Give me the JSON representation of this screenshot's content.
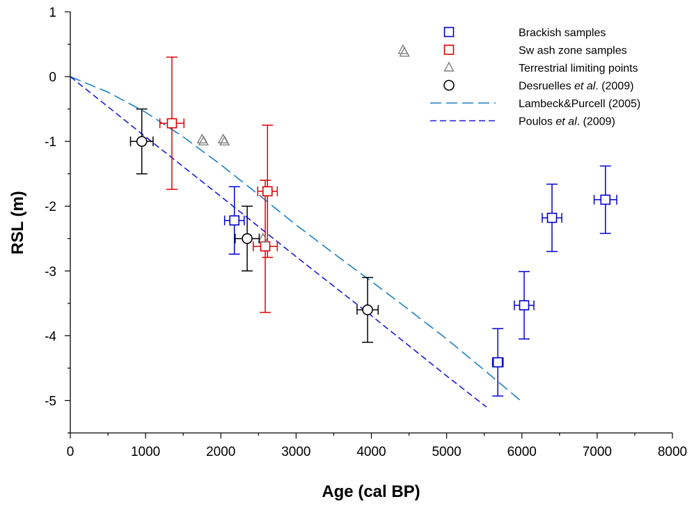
{
  "chart_data": {
    "type": "scatter",
    "xlabel": "Age (cal BP)",
    "ylabel": "RSL (m)",
    "xlim": [
      0,
      8000
    ],
    "ylim": [
      -5.5,
      1
    ],
    "xticks": [
      0,
      1000,
      2000,
      3000,
      4000,
      5000,
      6000,
      7000,
      8000
    ],
    "yticks": [
      1,
      0,
      -1,
      -2,
      -3,
      -4,
      -5
    ],
    "grid": false,
    "legend_position": "top-right",
    "colors": {
      "brackish": "#0000cc",
      "swash": "#dd0000",
      "terrestrial": "#808080",
      "desruelles": "#000000",
      "lambeck": "#1a7fc4",
      "poulos": "#1a1adc"
    },
    "series": [
      {
        "name": "Brackish samples",
        "marker": "square",
        "points": [
          {
            "x": 2180,
            "y": -2.22,
            "xerr": 130,
            "yerr_low": 0.52,
            "yerr_high": 0.52
          },
          {
            "x": 5680,
            "y": -4.41,
            "xerr": 70,
            "yerr_low": 0.52,
            "yerr_high": 0.52
          },
          {
            "x": 6030,
            "y": -3.53,
            "xerr": 130,
            "yerr_low": 0.52,
            "yerr_high": 0.52
          },
          {
            "x": 6400,
            "y": -2.18,
            "xerr": 130,
            "yerr_low": 0.52,
            "yerr_high": 0.52
          },
          {
            "x": 7110,
            "y": -1.9,
            "xerr": 150,
            "yerr_low": 0.52,
            "yerr_high": 0.52
          }
        ]
      },
      {
        "name": "Sw ash zone samples",
        "marker": "square",
        "points": [
          {
            "x": 1350,
            "y": -0.72,
            "xerr": 160,
            "yerr_low": 1.02,
            "yerr_high": 1.02
          },
          {
            "x": 2620,
            "y": -1.77,
            "xerr": 130,
            "yerr_low": 1.02,
            "yerr_high": 1.02
          },
          {
            "x": 2590,
            "y": -2.62,
            "xerr": 160,
            "yerr_low": 1.02,
            "yerr_high": 1.02
          }
        ]
      },
      {
        "name": "Terrestrial limiting points",
        "marker": "triangle",
        "points": [
          {
            "x": 1750,
            "y": -0.97
          },
          {
            "x": 1770,
            "y": -1.0
          },
          {
            "x": 2030,
            "y": -0.97
          },
          {
            "x": 2050,
            "y": -1.0
          },
          {
            "x": 2560,
            "y": -2.5
          },
          {
            "x": 4420,
            "y": 0.41
          },
          {
            "x": 4440,
            "y": 0.37
          }
        ]
      },
      {
        "name": "Desruelles et al. (2009)",
        "marker": "circle",
        "points": [
          {
            "x": 950,
            "y": -1.0,
            "xerr": 150,
            "yerr_low": 0.5,
            "yerr_high": 0.5
          },
          {
            "x": 2350,
            "y": -2.5,
            "xerr": 160,
            "yerr_low": 0.5,
            "yerr_high": 0.5
          },
          {
            "x": 3950,
            "y": -3.6,
            "xerr": 140,
            "yerr_low": 0.5,
            "yerr_high": 0.5
          }
        ]
      },
      {
        "name": "Lambeck&Purcell (2005)",
        "line": "long-dash",
        "x": [
          0,
          500,
          1000,
          1500,
          2000,
          2500,
          3000,
          3500,
          4000,
          4500,
          5000,
          5500,
          6000
        ],
        "y": [
          0,
          -0.24,
          -0.55,
          -0.93,
          -1.36,
          -1.82,
          -2.29,
          -2.73,
          -3.16,
          -3.6,
          -4.05,
          -4.53,
          -5.02
        ]
      },
      {
        "name": "Poulos et al. (2009)",
        "line": "short-dash",
        "x": [
          0,
          1000,
          2000,
          3000,
          4000,
          5000,
          5530
        ],
        "y": [
          0,
          -0.93,
          -1.85,
          -2.78,
          -3.69,
          -4.62,
          -5.1
        ]
      }
    ]
  },
  "legend": [
    {
      "pre": "Brackish samples",
      "italic": "",
      "post": ""
    },
    {
      "pre": "Sw ash zone samples",
      "italic": "",
      "post": ""
    },
    {
      "pre": "Terrestrial limiting points",
      "italic": "",
      "post": ""
    },
    {
      "pre": "Desruelles ",
      "italic": "et al",
      "post": ". (2009)"
    },
    {
      "pre": "Lambeck&Purcell (2005)",
      "italic": "",
      "post": ""
    },
    {
      "pre": "Poulos ",
      "italic": "et al",
      "post": ". (2009)"
    }
  ]
}
